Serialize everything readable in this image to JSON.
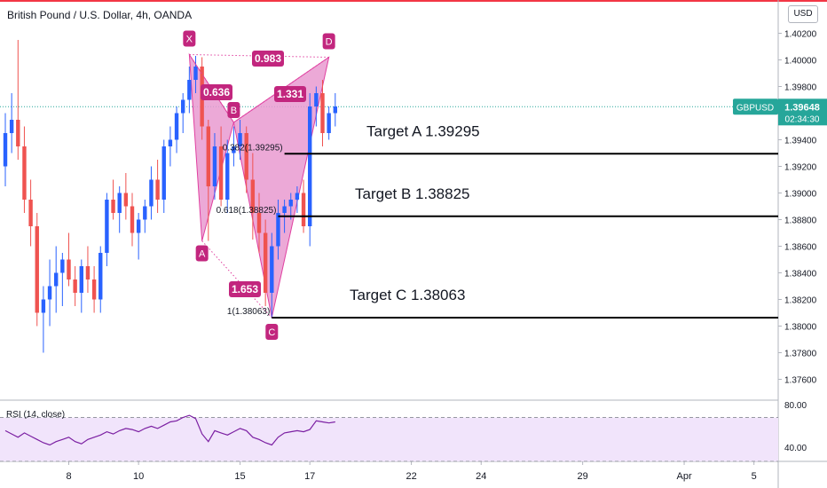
{
  "header": {
    "title": "British Pound / U.S. Dollar, 4h, OANDA",
    "currency": "USD"
  },
  "price_tag": {
    "symbol": "GBPUSD",
    "price": "1.39648",
    "countdown": "02:34:30",
    "color": "#26a69a"
  },
  "colors": {
    "up": "#2962ff",
    "down": "#ef5350",
    "pattern": "#e040a0",
    "pattern_fill": "#e99ad0",
    "label_bg": "#c2267e",
    "rsi_line": "#7b1fa2",
    "rsi_band": "#f1e4fb"
  },
  "rsi": {
    "label": "RSI (14, close)",
    "axis_labels": [
      "80.00",
      "40.00"
    ]
  },
  "chart_data": {
    "type": "candlestick",
    "ylim": [
      1.3745,
      1.4045
    ],
    "y_ticks": [
      "1.40200",
      "1.40000",
      "1.39800",
      "1.39400",
      "1.39200",
      "1.39000",
      "1.38800",
      "1.38600",
      "1.38400",
      "1.38200",
      "1.38000",
      "1.37800",
      "1.37600"
    ],
    "x_ticks": [
      {
        "label": "8",
        "i": 10
      },
      {
        "label": "10",
        "i": 21
      },
      {
        "label": "15",
        "i": 37
      },
      {
        "label": "17",
        "i": 48
      },
      {
        "label": "22",
        "i": 64
      },
      {
        "label": "24",
        "i": 75
      },
      {
        "label": "29",
        "i": 91
      },
      {
        "label": "Apr",
        "i": 107
      },
      {
        "label": "5",
        "i": 118
      }
    ],
    "candles": [
      [
        1.392,
        1.396,
        1.3905,
        1.3945
      ],
      [
        1.3945,
        1.3975,
        1.393,
        1.3955
      ],
      [
        1.3955,
        1.4015,
        1.3925,
        1.3935
      ],
      [
        1.3935,
        1.395,
        1.3885,
        1.3895
      ],
      [
        1.3895,
        1.391,
        1.386,
        1.3875
      ],
      [
        1.3875,
        1.3885,
        1.38,
        1.381
      ],
      [
        1.381,
        1.383,
        1.378,
        1.382
      ],
      [
        1.382,
        1.385,
        1.38,
        1.383
      ],
      [
        1.383,
        1.386,
        1.381,
        1.384
      ],
      [
        1.384,
        1.3855,
        1.3815,
        1.385
      ],
      [
        1.385,
        1.387,
        1.383,
        1.3835
      ],
      [
        1.3835,
        1.3845,
        1.3815,
        1.3825
      ],
      [
        1.3825,
        1.385,
        1.381,
        1.3845
      ],
      [
        1.3845,
        1.386,
        1.3825,
        1.3835
      ],
      [
        1.3835,
        1.3845,
        1.381,
        1.382
      ],
      [
        1.382,
        1.386,
        1.381,
        1.3855
      ],
      [
        1.3855,
        1.39,
        1.3845,
        1.3895
      ],
      [
        1.3895,
        1.391,
        1.388,
        1.3885
      ],
      [
        1.3885,
        1.3905,
        1.387,
        1.39
      ],
      [
        1.39,
        1.3915,
        1.388,
        1.389
      ],
      [
        1.389,
        1.39,
        1.386,
        1.387
      ],
      [
        1.387,
        1.3885,
        1.385,
        1.388
      ],
      [
        1.388,
        1.3895,
        1.387,
        1.389
      ],
      [
        1.389,
        1.392,
        1.388,
        1.391
      ],
      [
        1.391,
        1.3925,
        1.3885,
        1.3895
      ],
      [
        1.3895,
        1.394,
        1.3885,
        1.3935
      ],
      [
        1.3935,
        1.395,
        1.392,
        1.394
      ],
      [
        1.394,
        1.3965,
        1.393,
        1.396
      ],
      [
        1.396,
        1.3975,
        1.3945,
        1.397
      ],
      [
        1.397,
        1.3995,
        1.396,
        1.3985
      ],
      [
        1.3985,
        1.4003,
        1.3975,
        1.3995
      ],
      [
        1.3995,
        1.4002,
        1.394,
        1.395
      ],
      [
        1.395,
        1.3955,
        1.3864,
        1.3905
      ],
      [
        1.3905,
        1.3945,
        1.3895,
        1.3935
      ],
      [
        1.3935,
        1.395,
        1.389,
        1.3895
      ],
      [
        1.3895,
        1.394,
        1.3885,
        1.393
      ],
      [
        1.393,
        1.395,
        1.392,
        1.3935
      ],
      [
        1.3935,
        1.3955,
        1.3925,
        1.3945
      ],
      [
        1.3945,
        1.395,
        1.39,
        1.391
      ],
      [
        1.391,
        1.393,
        1.3865,
        1.3885
      ],
      [
        1.3885,
        1.39,
        1.3855,
        1.387
      ],
      [
        1.387,
        1.388,
        1.3815,
        1.3825
      ],
      [
        1.3825,
        1.387,
        1.3806,
        1.386
      ],
      [
        1.386,
        1.3895,
        1.385,
        1.3885
      ],
      [
        1.3885,
        1.3895,
        1.387,
        1.389
      ],
      [
        1.389,
        1.39,
        1.388,
        1.3895
      ],
      [
        1.3895,
        1.3905,
        1.3885,
        1.39
      ],
      [
        1.39,
        1.391,
        1.387,
        1.3875
      ],
      [
        1.3875,
        1.3975,
        1.386,
        1.3965
      ],
      [
        1.3965,
        1.398,
        1.395,
        1.3975
      ],
      [
        1.3975,
        1.3985,
        1.3935,
        1.3945
      ],
      [
        1.3945,
        1.3965,
        1.394,
        1.396
      ],
      [
        1.396,
        1.3975,
        1.395,
        1.3965
      ]
    ],
    "current_price": 1.39648,
    "targets": [
      {
        "label": "Target A 1.39295",
        "price": 1.39295,
        "fib": "0.382(1.39295)"
      },
      {
        "label": "Target B 1.38825",
        "price": 1.38825,
        "fib": "0.618(1.38825)"
      },
      {
        "label": "Target C 1.38063",
        "price": 1.38063,
        "fib": "1(1.38063)"
      }
    ],
    "pattern": {
      "points": [
        {
          "name": "X",
          "i": 29,
          "price": 1.4004
        },
        {
          "name": "A",
          "i": 31,
          "price": 1.3864
        },
        {
          "name": "B",
          "i": 36,
          "price": 1.3953
        },
        {
          "name": "C",
          "i": 42,
          "price": 1.38063
        },
        {
          "name": "D",
          "i": 51,
          "price": 1.4002
        }
      ],
      "ratios": [
        {
          "label": "0.636",
          "between": [
            "X",
            "B"
          ]
        },
        {
          "label": "1.653",
          "between": [
            "A",
            "C"
          ]
        },
        {
          "label": "1.331",
          "between": [
            "B",
            "D"
          ]
        },
        {
          "label": "0.983",
          "between": [
            "X",
            "D"
          ]
        }
      ]
    },
    "rsi": {
      "ylim": [
        30,
        85
      ],
      "levels": [
        70,
        30
      ],
      "values": [
        58,
        55,
        52,
        56,
        53,
        50,
        47,
        45,
        48,
        50,
        52,
        48,
        46,
        50,
        52,
        54,
        57,
        55,
        58,
        60,
        59,
        57,
        60,
        62,
        60,
        63,
        66,
        67,
        70,
        72,
        69,
        55,
        48,
        58,
        56,
        54,
        57,
        60,
        58,
        52,
        50,
        47,
        45,
        52,
        56,
        57,
        58,
        57,
        59,
        67,
        66,
        65,
        66
      ]
    }
  }
}
